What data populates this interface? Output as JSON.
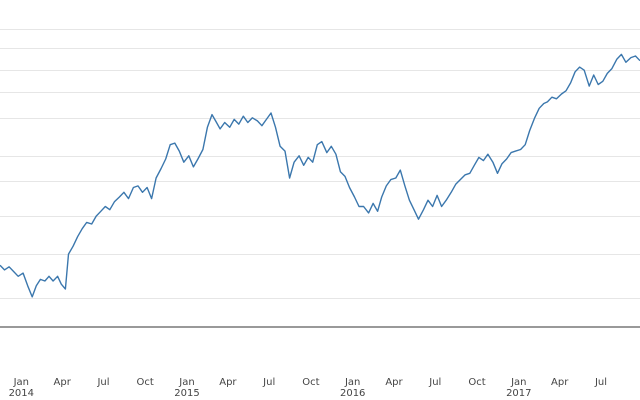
{
  "chart_data": {
    "type": "line",
    "title": "",
    "xlabel": "",
    "ylabel": "",
    "grid": true,
    "legend": "none",
    "line_color": "#3b77ad",
    "xlim": [
      "2013-11-15",
      "2017-09-25"
    ],
    "ylim": [
      0,
      100
    ],
    "x_ticks": [
      {
        "date": "2014-01-01",
        "label": "Jan",
        "year": "2014"
      },
      {
        "date": "2014-04-01",
        "label": "Apr",
        "year": ""
      },
      {
        "date": "2014-07-01",
        "label": "Jul",
        "year": ""
      },
      {
        "date": "2014-10-01",
        "label": "Oct",
        "year": ""
      },
      {
        "date": "2015-01-01",
        "label": "Jan",
        "year": "2015"
      },
      {
        "date": "2015-04-01",
        "label": "Apr",
        "year": ""
      },
      {
        "date": "2015-07-01",
        "label": "Jul",
        "year": ""
      },
      {
        "date": "2015-10-01",
        "label": "Oct",
        "year": ""
      },
      {
        "date": "2016-01-01",
        "label": "Jan",
        "year": "2016"
      },
      {
        "date": "2016-04-01",
        "label": "Apr",
        "year": ""
      },
      {
        "date": "2016-07-01",
        "label": "Jul",
        "year": ""
      },
      {
        "date": "2016-10-01",
        "label": "Oct",
        "year": ""
      },
      {
        "date": "2017-01-01",
        "label": "Jan",
        "year": "2017"
      },
      {
        "date": "2017-04-01",
        "label": "Apr",
        "year": ""
      },
      {
        "date": "2017-07-01",
        "label": "Jul",
        "year": ""
      }
    ],
    "y_gridlines": [
      9,
      23,
      35,
      46,
      54,
      66,
      74,
      81,
      88,
      94
    ],
    "series": [
      {
        "name": "",
        "points": [
          [
            "2013-11-15",
            19.5
          ],
          [
            "2013-11-25",
            18.0
          ],
          [
            "2013-12-05",
            19.0
          ],
          [
            "2013-12-15",
            17.5
          ],
          [
            "2013-12-25",
            16.0
          ],
          [
            "2014-01-05",
            17.0
          ],
          [
            "2014-01-15",
            13.0
          ],
          [
            "2014-01-25",
            9.5
          ],
          [
            "2014-02-03",
            13.0
          ],
          [
            "2014-02-12",
            15.0
          ],
          [
            "2014-02-22",
            14.5
          ],
          [
            "2014-03-03",
            16.0
          ],
          [
            "2014-03-12",
            14.5
          ],
          [
            "2014-03-22",
            16.0
          ],
          [
            "2014-03-30",
            13.5
          ],
          [
            "2014-04-08",
            12.0
          ],
          [
            "2014-04-15",
            23.0
          ],
          [
            "2014-04-25",
            25.5
          ],
          [
            "2014-05-05",
            28.5
          ],
          [
            "2014-05-15",
            31.0
          ],
          [
            "2014-05-25",
            33.0
          ],
          [
            "2014-06-05",
            32.5
          ],
          [
            "2014-06-15",
            35.0
          ],
          [
            "2014-06-25",
            36.5
          ],
          [
            "2014-07-05",
            38.0
          ],
          [
            "2014-07-15",
            37.0
          ],
          [
            "2014-07-25",
            39.5
          ],
          [
            "2014-08-05",
            41.0
          ],
          [
            "2014-08-15",
            42.5
          ],
          [
            "2014-08-25",
            40.5
          ],
          [
            "2014-09-05",
            44.0
          ],
          [
            "2014-09-15",
            44.5
          ],
          [
            "2014-09-25",
            42.5
          ],
          [
            "2014-10-05",
            44.0
          ],
          [
            "2014-10-15",
            40.5
          ],
          [
            "2014-10-25",
            47.0
          ],
          [
            "2014-11-05",
            50.0
          ],
          [
            "2014-11-15",
            53.0
          ],
          [
            "2014-11-25",
            57.5
          ],
          [
            "2014-12-05",
            58.0
          ],
          [
            "2014-12-15",
            55.5
          ],
          [
            "2014-12-25",
            52.0
          ],
          [
            "2015-01-05",
            54.0
          ],
          [
            "2015-01-15",
            50.5
          ],
          [
            "2015-01-25",
            53.0
          ],
          [
            "2015-02-05",
            56.0
          ],
          [
            "2015-02-15",
            63.0
          ],
          [
            "2015-02-25",
            67.0
          ],
          [
            "2015-03-05",
            65.0
          ],
          [
            "2015-03-15",
            62.5
          ],
          [
            "2015-03-25",
            64.5
          ],
          [
            "2015-04-05",
            63.0
          ],
          [
            "2015-04-15",
            65.5
          ],
          [
            "2015-04-25",
            64.0
          ],
          [
            "2015-05-05",
            66.5
          ],
          [
            "2015-05-15",
            64.5
          ],
          [
            "2015-05-25",
            66.0
          ],
          [
            "2015-06-05",
            65.0
          ],
          [
            "2015-06-15",
            63.5
          ],
          [
            "2015-06-25",
            65.5
          ],
          [
            "2015-07-05",
            67.5
          ],
          [
            "2015-07-15",
            63.0
          ],
          [
            "2015-07-25",
            57.0
          ],
          [
            "2015-08-05",
            55.5
          ],
          [
            "2015-08-15",
            47.0
          ],
          [
            "2015-08-25",
            52.0
          ],
          [
            "2015-09-05",
            54.0
          ],
          [
            "2015-09-15",
            51.0
          ],
          [
            "2015-09-25",
            53.5
          ],
          [
            "2015-10-05",
            52.0
          ],
          [
            "2015-10-15",
            57.5
          ],
          [
            "2015-10-25",
            58.5
          ],
          [
            "2015-11-05",
            55.0
          ],
          [
            "2015-11-15",
            57.0
          ],
          [
            "2015-11-25",
            54.5
          ],
          [
            "2015-12-05",
            49.0
          ],
          [
            "2015-12-15",
            47.5
          ],
          [
            "2015-12-25",
            44.0
          ],
          [
            "2016-01-05",
            41.0
          ],
          [
            "2016-01-15",
            38.0
          ],
          [
            "2016-01-25",
            38.0
          ],
          [
            "2016-02-05",
            36.0
          ],
          [
            "2016-02-15",
            39.0
          ],
          [
            "2016-02-25",
            36.5
          ],
          [
            "2016-03-05",
            41.0
          ],
          [
            "2016-03-15",
            44.5
          ],
          [
            "2016-03-25",
            46.5
          ],
          [
            "2016-04-05",
            47.0
          ],
          [
            "2016-04-15",
            49.5
          ],
          [
            "2016-04-25",
            44.5
          ],
          [
            "2016-05-05",
            40.0
          ],
          [
            "2016-05-15",
            37.0
          ],
          [
            "2016-05-25",
            34.0
          ],
          [
            "2016-06-05",
            37.0
          ],
          [
            "2016-06-15",
            40.0
          ],
          [
            "2016-06-25",
            38.0
          ],
          [
            "2016-07-05",
            41.5
          ],
          [
            "2016-07-15",
            38.0
          ],
          [
            "2016-07-25",
            40.0
          ],
          [
            "2016-08-05",
            42.5
          ],
          [
            "2016-08-15",
            45.0
          ],
          [
            "2016-08-25",
            46.5
          ],
          [
            "2016-09-05",
            48.0
          ],
          [
            "2016-09-15",
            48.5
          ],
          [
            "2016-09-25",
            51.0
          ],
          [
            "2016-10-05",
            53.5
          ],
          [
            "2016-10-15",
            52.5
          ],
          [
            "2016-10-25",
            54.5
          ],
          [
            "2016-11-05",
            52.0
          ],
          [
            "2016-11-15",
            48.5
          ],
          [
            "2016-11-25",
            51.5
          ],
          [
            "2016-12-05",
            53.0
          ],
          [
            "2016-12-15",
            55.0
          ],
          [
            "2016-12-25",
            55.5
          ],
          [
            "2017-01-05",
            56.0
          ],
          [
            "2017-01-15",
            57.5
          ],
          [
            "2017-01-25",
            62.0
          ],
          [
            "2017-02-05",
            66.0
          ],
          [
            "2017-02-15",
            69.0
          ],
          [
            "2017-02-25",
            70.5
          ],
          [
            "2017-03-05",
            71.0
          ],
          [
            "2017-03-15",
            72.5
          ],
          [
            "2017-03-25",
            72.0
          ],
          [
            "2017-04-05",
            73.5
          ],
          [
            "2017-04-15",
            74.5
          ],
          [
            "2017-04-25",
            77.0
          ],
          [
            "2017-05-05",
            80.5
          ],
          [
            "2017-05-15",
            82.0
          ],
          [
            "2017-05-25",
            81.0
          ],
          [
            "2017-06-05",
            76.0
          ],
          [
            "2017-06-15",
            79.5
          ],
          [
            "2017-06-25",
            76.5
          ],
          [
            "2017-07-05",
            77.5
          ],
          [
            "2017-07-15",
            80.0
          ],
          [
            "2017-07-25",
            81.5
          ],
          [
            "2017-08-05",
            84.5
          ],
          [
            "2017-08-15",
            86.0
          ],
          [
            "2017-08-25",
            83.5
          ],
          [
            "2017-09-05",
            85.0
          ],
          [
            "2017-09-15",
            85.5
          ],
          [
            "2017-09-25",
            84.0
          ]
        ]
      }
    ]
  }
}
